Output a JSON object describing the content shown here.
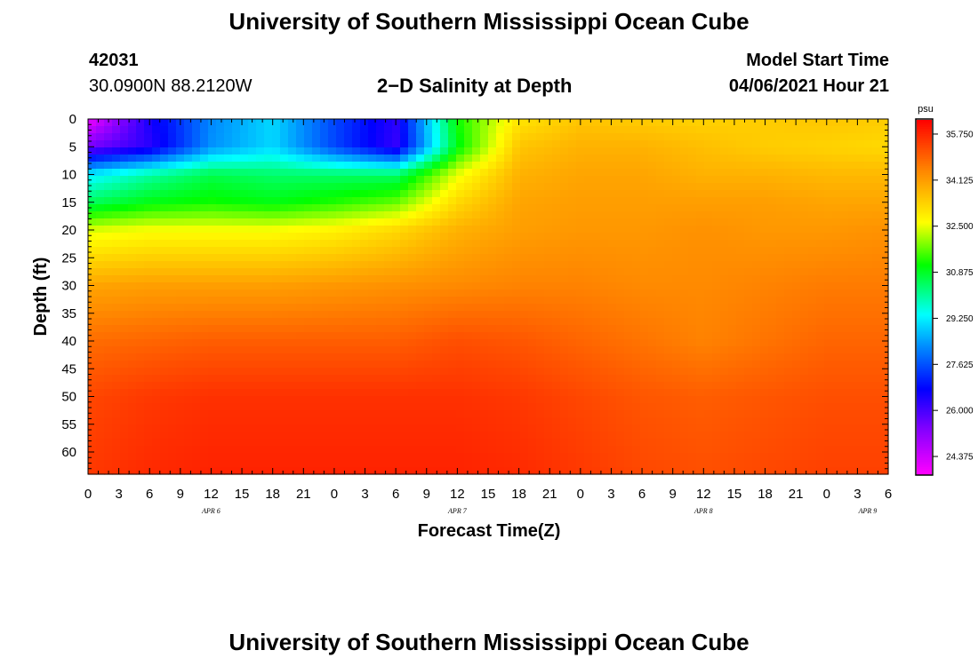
{
  "header": {
    "title": "University of Southern Mississippi Ocean Cube",
    "station_id": "42031",
    "coordinates": "30.0900N  88.2120W",
    "plot_title": "2−D Salinity at Depth",
    "model_start_label": "Model Start Time",
    "model_start_value": "04/06/2021 Hour 21"
  },
  "footer": {
    "title": "University of Southern Mississippi Ocean Cube"
  },
  "chart_data": {
    "type": "heatmap",
    "title": "2−D Salinity at Depth",
    "xlabel": "Forecast Time(Z)",
    "ylabel": "Depth (ft)",
    "x_range_hours_from_apr6_00z": [
      0,
      78
    ],
    "ylim": [
      0,
      64
    ],
    "y_inverted": true,
    "x_ticks": [
      "0",
      "3",
      "6",
      "9",
      "12",
      "15",
      "18",
      "21",
      "0",
      "3",
      "6",
      "9",
      "12",
      "15",
      "18",
      "21",
      "0",
      "3",
      "6",
      "9",
      "12",
      "15",
      "18",
      "21",
      "0",
      "3",
      "6"
    ],
    "date_labels": [
      {
        "text": "APR 6",
        "hour": 12
      },
      {
        "text": "APR 7",
        "hour": 36
      },
      {
        "text": "APR 8",
        "hour": 60
      },
      {
        "text": "APR 9",
        "hour": 76
      }
    ],
    "y_ticks": [
      0,
      5,
      10,
      15,
      20,
      25,
      30,
      35,
      40,
      45,
      50,
      55,
      60
    ],
    "colorbar": {
      "unit": "psu",
      "min": 23.75,
      "max": 36.25,
      "labels": [
        "35.750",
        "34.125",
        "32.500",
        "30.875",
        "29.250",
        "27.625",
        "26.000",
        "24.375"
      ],
      "label_values": [
        35.75,
        34.125,
        32.5,
        30.875,
        29.25,
        27.625,
        26.0,
        24.375
      ]
    },
    "salinity_hours": [
      0,
      6,
      12,
      18,
      24,
      30,
      36,
      42,
      48,
      54,
      60,
      66,
      72,
      78
    ],
    "salinity_depths": [
      0,
      5,
      10,
      15,
      20,
      30,
      40,
      50,
      64
    ],
    "salinity_psu": [
      [
        23.9,
        26.5,
        28.2,
        29.0,
        27.5,
        26.3,
        31.2,
        33.0,
        33.5,
        33.4,
        33.3,
        33.4,
        33.5,
        33.4
      ],
      [
        25.5,
        26.3,
        28.3,
        29.0,
        27.5,
        26.2,
        31.0,
        33.5,
        33.8,
        33.8,
        33.6,
        33.4,
        33.3,
        33.2
      ],
      [
        29.2,
        30.0,
        30.6,
        30.4,
        30.4,
        30.4,
        32.5,
        33.8,
        34.0,
        34.0,
        33.8,
        33.8,
        33.7,
        33.7
      ],
      [
        30.5,
        31.0,
        31.2,
        31.0,
        31.3,
        31.7,
        33.2,
        34.0,
        34.1,
        34.1,
        34.1,
        34.1,
        34.0,
        34.0
      ],
      [
        32.4,
        32.6,
        32.6,
        32.6,
        32.8,
        33.2,
        33.8,
        34.1,
        34.2,
        34.2,
        34.3,
        34.2,
        34.2,
        34.3
      ],
      [
        34.0,
        34.1,
        34.1,
        34.1,
        34.2,
        34.3,
        34.4,
        34.5,
        34.5,
        34.4,
        34.4,
        34.5,
        34.6,
        34.6
      ],
      [
        34.8,
        34.9,
        35.0,
        35.0,
        35.0,
        35.0,
        35.2,
        35.1,
        34.9,
        34.7,
        34.5,
        34.7,
        34.9,
        34.9
      ],
      [
        35.3,
        35.5,
        35.6,
        35.6,
        35.6,
        35.6,
        35.6,
        35.5,
        35.3,
        35.1,
        35.0,
        35.1,
        35.2,
        35.2
      ],
      [
        35.5,
        35.7,
        35.8,
        35.8,
        35.8,
        35.8,
        35.8,
        35.7,
        35.5,
        35.3,
        35.2,
        35.3,
        35.4,
        35.4
      ]
    ]
  }
}
